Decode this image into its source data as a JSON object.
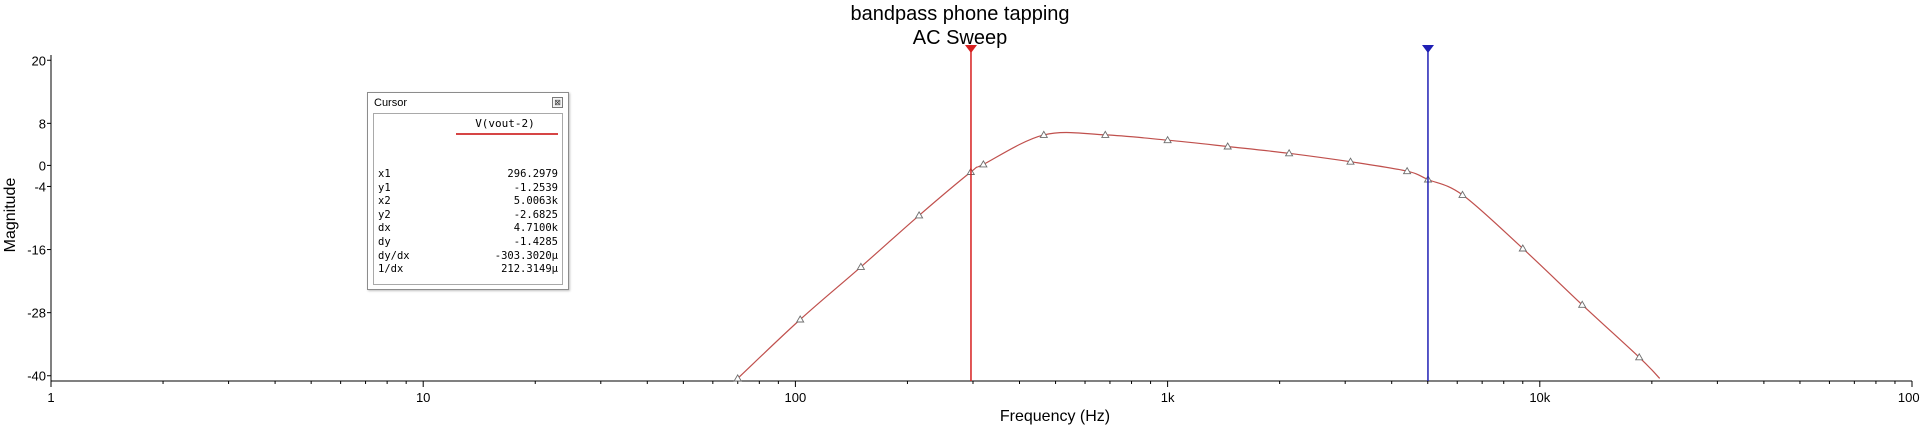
{
  "chart_data": {
    "type": "line",
    "title": "bandpass phone tapping",
    "subtitle": "AC Sweep",
    "xlabel": "Frequency (Hz)",
    "ylabel": "Magnitude",
    "xscale": "log",
    "xlim": [
      1,
      100000
    ],
    "ylim": [
      -41,
      21
    ],
    "x_ticks": [
      1,
      10,
      100,
      1000,
      10000,
      100000
    ],
    "x_tick_labels": [
      "1",
      "10",
      "100",
      "1k",
      "10k",
      "100k"
    ],
    "y_ticks": [
      20,
      8,
      0,
      -4,
      -16,
      -28,
      -40
    ],
    "y_tick_labels": [
      "20",
      "8",
      "0",
      "-4",
      "-16",
      "-28",
      "-40"
    ],
    "grid": false,
    "series": [
      {
        "name": "V(vout-2)",
        "color": "#c0504d",
        "x": [
          70,
          103,
          150,
          215,
          296,
          320,
          465,
          680,
          1000,
          1450,
          2120,
          3100,
          4400,
          5006,
          6200,
          9000,
          13000,
          18500,
          21000
        ],
        "y": [
          -40.5,
          -29.3,
          -19.3,
          -9.5,
          -1.25,
          0.2,
          5.8,
          5.8,
          4.8,
          3.6,
          2.3,
          0.7,
          -1.1,
          -2.68,
          -5.6,
          -15.8,
          -26.5,
          -36.5,
          -40.5
        ],
        "marker_x": [
          70,
          103,
          150,
          215,
          296,
          320,
          465,
          680,
          1000,
          1450,
          2120,
          3100,
          4400,
          5006,
          6200,
          9000,
          13000,
          18500
        ]
      }
    ],
    "cursors": [
      {
        "name": "cursor-1",
        "x": 296.2979,
        "color": "#d62020"
      },
      {
        "name": "cursor-2",
        "x": 5006.3,
        "color": "#1f1fb4"
      }
    ]
  },
  "cursor_panel": {
    "title": "Cursor",
    "close_glyph": "⊠",
    "column_header": "V(vout-2)",
    "rows": [
      {
        "label": "x1",
        "value": "296.2979"
      },
      {
        "label": "y1",
        "value": "-1.2539"
      },
      {
        "label": "x2",
        "value": "5.0063k"
      },
      {
        "label": "y2",
        "value": "-2.6825"
      },
      {
        "label": "dx",
        "value": "4.7100k"
      },
      {
        "label": "dy",
        "value": "-1.4285"
      },
      {
        "label": "dy/dx",
        "value": "-303.3020µ"
      },
      {
        "label": "1/dx",
        "value": "212.3149µ"
      }
    ]
  }
}
